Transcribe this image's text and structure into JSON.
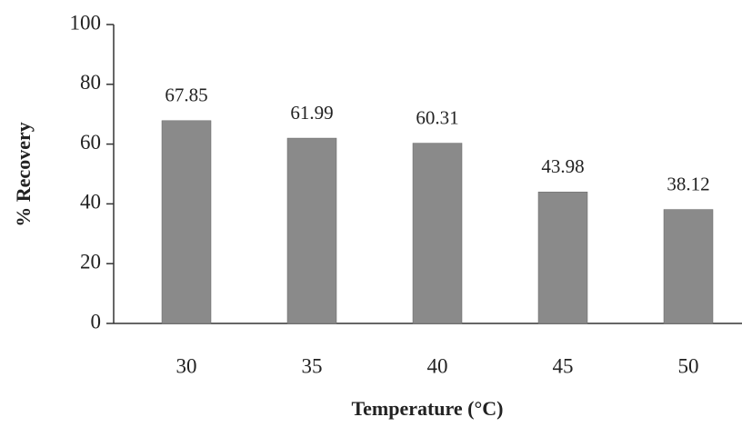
{
  "chart_data": {
    "type": "bar",
    "x_label": "Temperature (°C)",
    "y_label": "% Recovery",
    "categories": [
      "30",
      "35",
      "40",
      "45",
      "50"
    ],
    "values": [
      67.85,
      61.99,
      60.31,
      43.98,
      38.12
    ],
    "color": "#8a8a8a",
    "ylim": [
      0,
      100
    ],
    "yticks": [
      0,
      20,
      40,
      60,
      80,
      100
    ]
  }
}
